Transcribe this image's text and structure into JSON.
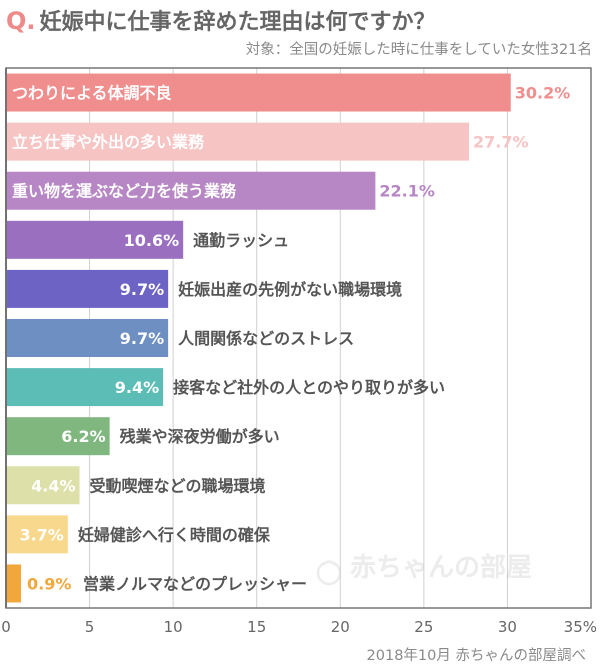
{
  "header": {
    "q_mark": "Q.",
    "title": "妊娠中に仕事を辞めた理由は何ですか？",
    "subtitle": "対象：全国の妊娠した時に仕事をしていた女性321名"
  },
  "footer": {
    "source": "2018年10月 赤ちゃんの部屋調べ"
  },
  "watermark": {
    "text": "赤ちゃんの部屋"
  },
  "colors": {
    "bars": [
      "#f08e8e",
      "#f7c4c4",
      "#b786c4",
      "#9b6fc0",
      "#6d63c4",
      "#6d8fc2",
      "#5cbdb6",
      "#7fb77f",
      "#dde0a8",
      "#f8d88c",
      "#f2a73a"
    ],
    "value_labels": [
      "#f08e8e",
      "#f7c4c4",
      "#b786c4",
      "#ffffff",
      "#ffffff",
      "#ffffff",
      "#ffffff",
      "#ffffff",
      "#ffffff",
      "#ffffff",
      "#f2a73a"
    ]
  },
  "chart_data": {
    "type": "bar",
    "orientation": "horizontal",
    "title": "妊娠中に仕事を辞めた理由は何ですか？",
    "categories": [
      "つわりによる体調不良",
      "立ち仕事や外出の多い業務",
      "重い物を運ぶなど力を使う業務",
      "通勤ラッシュ",
      "妊娠出産の先例がない職場環境",
      "人間関係などのストレス",
      "接客など社外の人とのやり取りが多い",
      "残業や深夜労働が多い",
      "受動喫煙などの職場環境",
      "妊婦健診へ行く時間の確保",
      "営業ノルマなどのプレッシャー"
    ],
    "values": [
      30.2,
      27.7,
      22.1,
      10.6,
      9.7,
      9.7,
      9.4,
      6.2,
      4.4,
      3.7,
      0.9
    ],
    "value_labels": [
      "30.2%",
      "27.7%",
      "22.1%",
      "10.6%",
      "9.7%",
      "9.7%",
      "9.4%",
      "6.2%",
      "4.4%",
      "3.7%",
      "0.9%"
    ],
    "x_ticks": [
      "0",
      "5",
      "10",
      "15",
      "20",
      "25",
      "30",
      "35%"
    ],
    "xlim": [
      0,
      35
    ],
    "grid": true,
    "legend": "none"
  }
}
